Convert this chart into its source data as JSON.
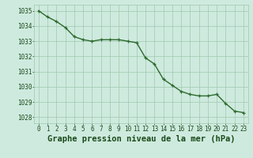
{
  "x": [
    0,
    1,
    2,
    3,
    4,
    5,
    6,
    7,
    8,
    9,
    10,
    11,
    12,
    13,
    14,
    15,
    16,
    17,
    18,
    19,
    20,
    21,
    22,
    23
  ],
  "y": [
    1035.0,
    1034.6,
    1034.3,
    1033.9,
    1033.3,
    1033.1,
    1033.0,
    1033.1,
    1033.1,
    1033.1,
    1033.0,
    1032.9,
    1031.9,
    1031.5,
    1030.5,
    1030.1,
    1029.7,
    1029.5,
    1029.4,
    1029.4,
    1029.5,
    1028.9,
    1028.4,
    1028.3
  ],
  "line_color": "#2d6a2d",
  "marker_color": "#2d6a2d",
  "bg_color": "#ceeade",
  "grid_color": "#a0c8b0",
  "xlabel": "Graphe pression niveau de la mer (hPa)",
  "xlabel_color": "#1a4a1a",
  "ytick_values": [
    1028,
    1029,
    1030,
    1031,
    1032,
    1033,
    1034,
    1035
  ],
  "ylim": [
    1027.6,
    1035.4
  ],
  "xlim": [
    -0.5,
    23.5
  ],
  "xtick_labels": [
    "0",
    "1",
    "2",
    "3",
    "4",
    "5",
    "6",
    "7",
    "8",
    "9",
    "10",
    "11",
    "12",
    "13",
    "14",
    "15",
    "16",
    "17",
    "18",
    "19",
    "20",
    "21",
    "22",
    "23"
  ],
  "tick_color": "#1a4a1a",
  "tick_fontsize": 5.5,
  "xlabel_fontsize": 7.5,
  "marker_size": 3.0,
  "line_width": 1.0
}
